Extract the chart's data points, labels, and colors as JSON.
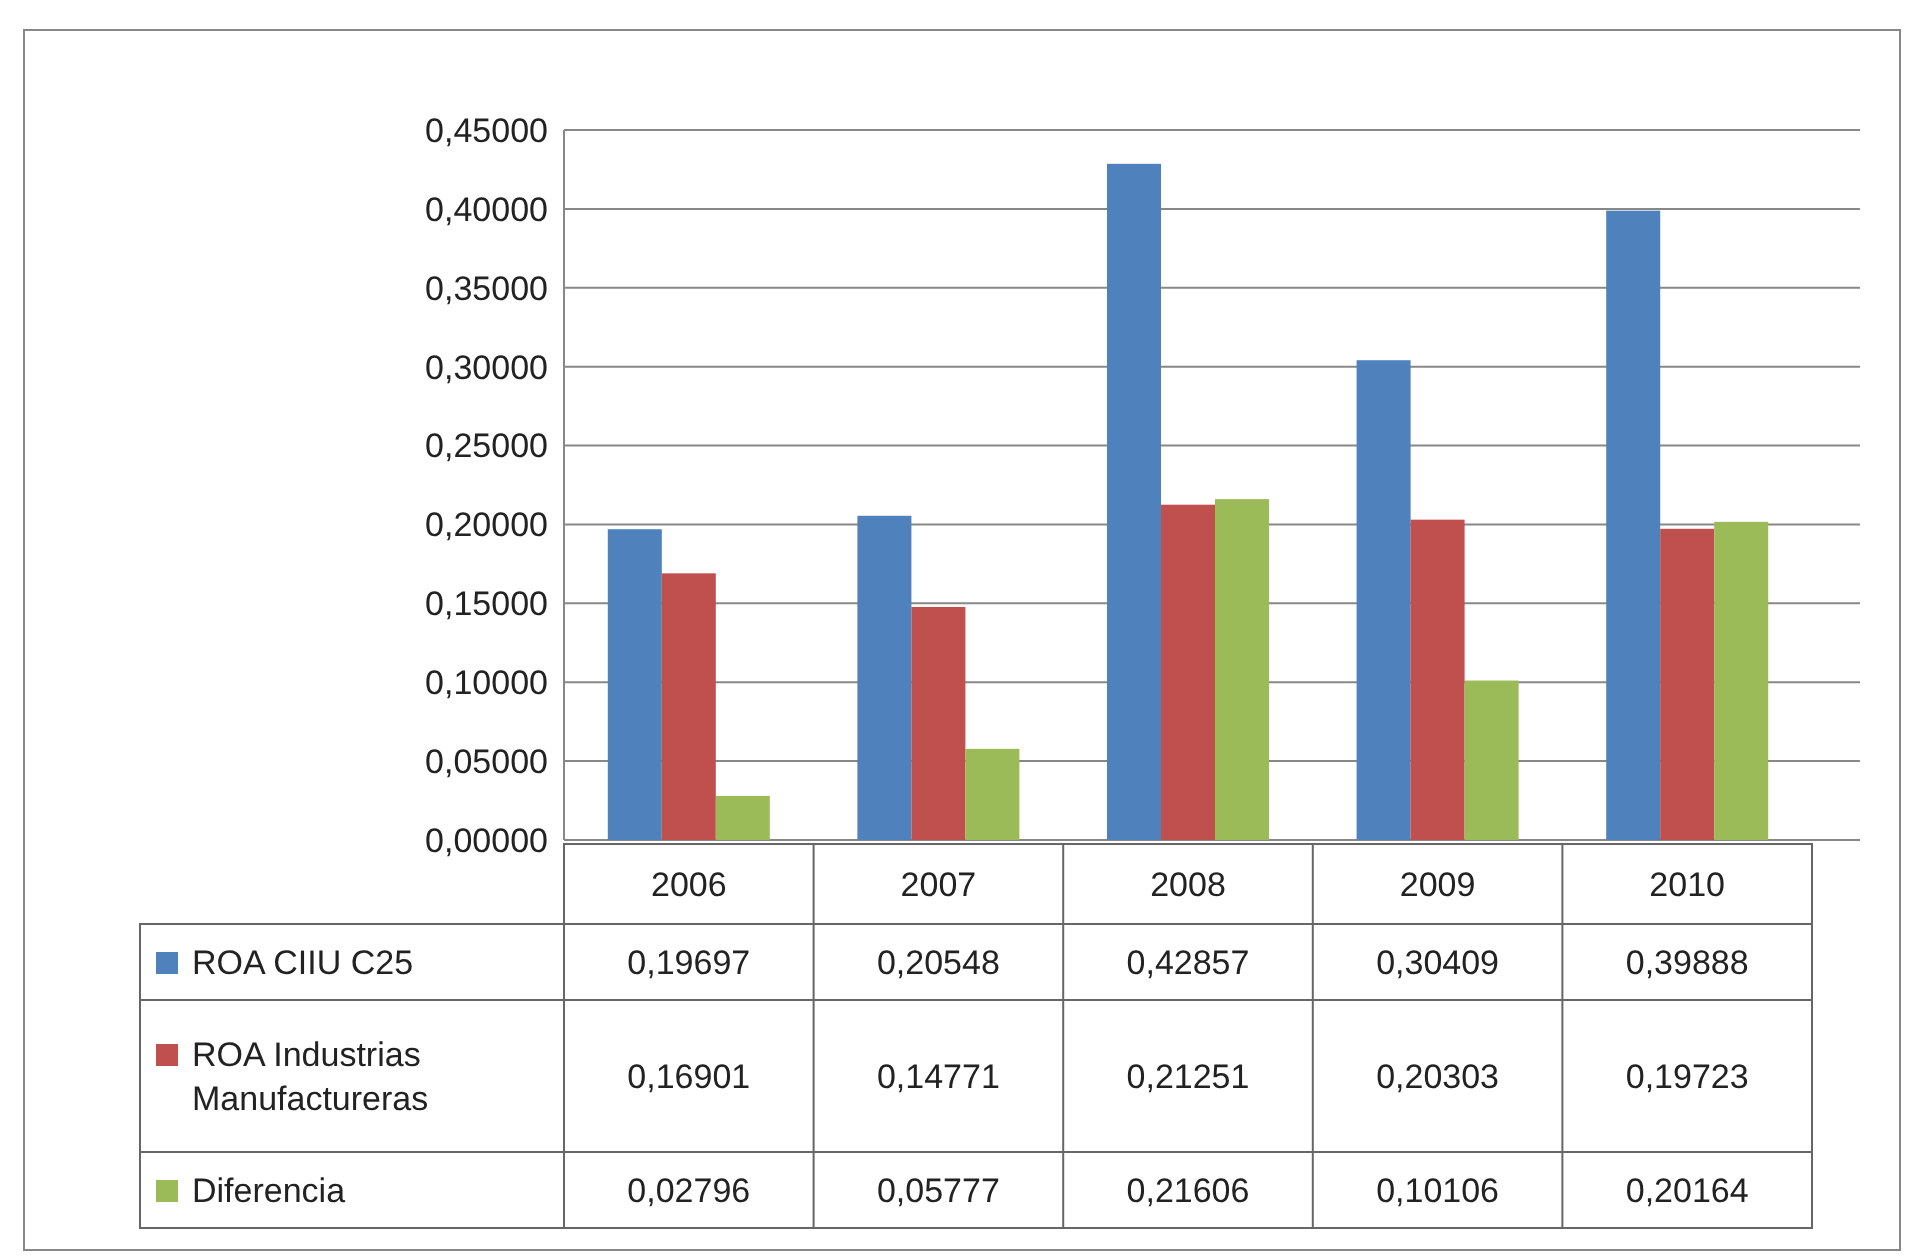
{
  "chart_data": {
    "type": "bar",
    "categories": [
      "2006",
      "2007",
      "2008",
      "2009",
      "2010"
    ],
    "series": [
      {
        "name": "ROA CIIU C25",
        "color": "#4f81bd",
        "values": [
          0.19697,
          0.20548,
          0.42857,
          0.30409,
          0.39888
        ],
        "value_labels": [
          "0,19697",
          "0,20548",
          "0,42857",
          "0,30409",
          "0,39888"
        ]
      },
      {
        "name": "ROA Industrias Manufactureras",
        "color": "#c0504d",
        "values": [
          0.16901,
          0.14771,
          0.21251,
          0.20303,
          0.19723
        ],
        "value_labels": [
          "0,16901",
          "0,14771",
          "0,21251",
          "0,20303",
          "0,19723"
        ]
      },
      {
        "name": "Diferencia",
        "color": "#9bbb59",
        "values": [
          0.02796,
          0.05777,
          0.21606,
          0.10106,
          0.20164
        ],
        "value_labels": [
          "0,02796",
          "0,05777",
          "0,21606",
          "0,10106",
          "0,20164"
        ]
      }
    ],
    "ylim": [
      0,
      0.45
    ],
    "yticks": [
      {
        "value": 0,
        "label": "0,00000"
      },
      {
        "value": 0.05,
        "label": "0,05000"
      },
      {
        "value": 0.1,
        "label": "0,10000"
      },
      {
        "value": 0.15,
        "label": "0,15000"
      },
      {
        "value": 0.2,
        "label": "0,20000"
      },
      {
        "value": 0.25,
        "label": "0,25000"
      },
      {
        "value": 0.3,
        "label": "0,30000"
      },
      {
        "value": 0.35,
        "label": "0,35000"
      },
      {
        "value": 0.4,
        "label": "0,40000"
      },
      {
        "value": 0.45,
        "label": "0,45000"
      }
    ],
    "grid": "y",
    "legend": "bottom"
  }
}
